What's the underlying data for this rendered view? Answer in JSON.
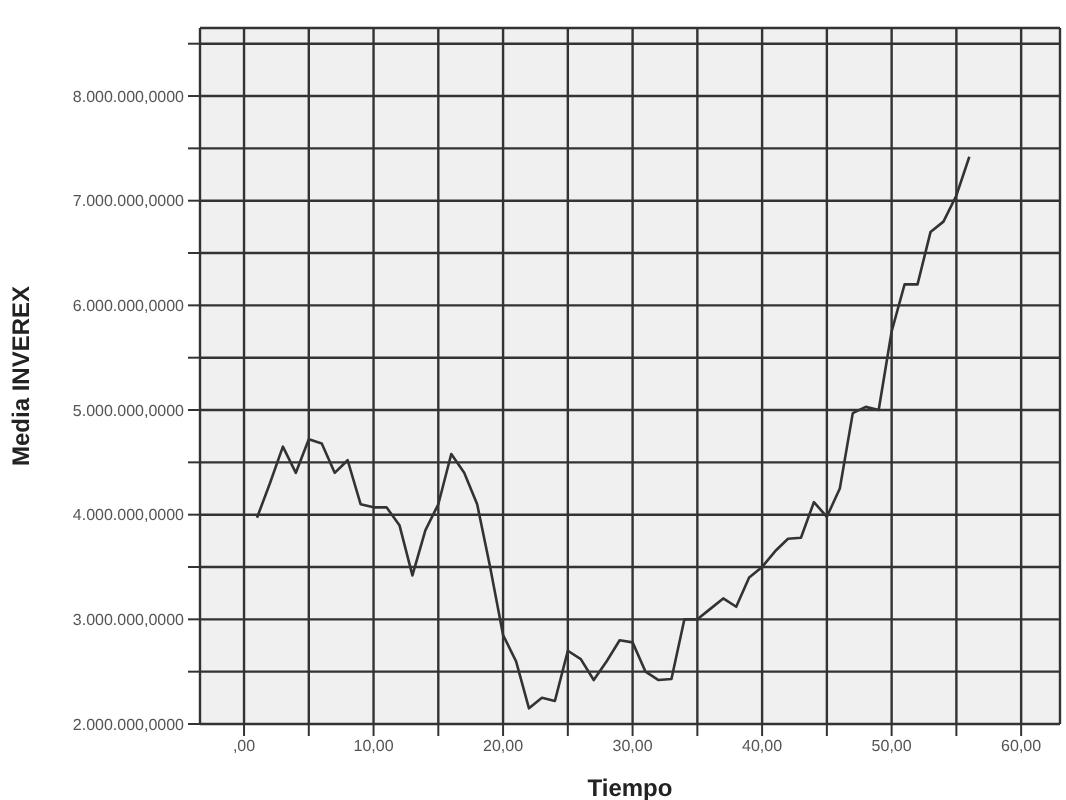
{
  "chart_data": {
    "type": "line",
    "xlabel": "Tiempo",
    "ylabel": "Media INVEREX",
    "x": [
      1,
      2,
      3,
      4,
      5,
      6,
      7,
      8,
      9,
      10,
      11,
      12,
      13,
      14,
      15,
      16,
      17,
      18,
      19,
      20,
      21,
      22,
      23,
      24,
      25,
      26,
      27,
      28,
      29,
      30,
      31,
      32,
      33,
      34,
      35,
      36,
      37,
      38,
      39,
      40,
      41,
      42,
      43,
      44,
      45,
      46,
      47,
      48,
      49,
      50,
      51,
      52,
      53,
      54,
      55,
      56
    ],
    "series": [
      {
        "color": "#333333",
        "values": [
          3970000,
          4300000,
          4650000,
          4400000,
          4720000,
          4680000,
          4400000,
          4520000,
          4100000,
          4070000,
          4070000,
          3900000,
          3420000,
          3850000,
          4100000,
          4580000,
          4400000,
          4100000,
          3500000,
          2850000,
          2600000,
          2150000,
          2250000,
          2220000,
          2700000,
          2620000,
          2420000,
          2600000,
          2800000,
          2780000,
          2500000,
          2420000,
          2430000,
          3000000,
          3000000,
          3100000,
          3200000,
          3120000,
          3400000,
          3500000,
          3650000,
          3770000,
          3780000,
          4120000,
          3980000,
          4250000,
          4970000,
          5030000,
          5000000,
          5750000,
          6200000,
          6200000,
          6700000,
          6800000,
          7050000,
          7420000
        ]
      }
    ],
    "xlim": [
      -3.4,
      63
    ],
    "xticks": [
      {
        "value": 0,
        "label": ",00"
      },
      {
        "value": 5,
        "label": null
      },
      {
        "value": 10,
        "label": "10,00"
      },
      {
        "value": 15,
        "label": null
      },
      {
        "value": 20,
        "label": "20,00"
      },
      {
        "value": 25,
        "label": null
      },
      {
        "value": 30,
        "label": "30,00"
      },
      {
        "value": 35,
        "label": null
      },
      {
        "value": 40,
        "label": "40,00"
      },
      {
        "value": 45,
        "label": null
      },
      {
        "value": 50,
        "label": "50,00"
      },
      {
        "value": 55,
        "label": null
      },
      {
        "value": 60,
        "label": "60,00"
      }
    ],
    "ylim": [
      2000000,
      8650000
    ],
    "yticks": [
      {
        "value": 2000000,
        "label": "2.000.000,0000"
      },
      {
        "value": 2500000,
        "label": null
      },
      {
        "value": 3000000,
        "label": "3.000.000,0000"
      },
      {
        "value": 3500000,
        "label": null
      },
      {
        "value": 4000000,
        "label": "4.000.000,0000"
      },
      {
        "value": 4500000,
        "label": null
      },
      {
        "value": 5000000,
        "label": "5.000.000,0000"
      },
      {
        "value": 5500000,
        "label": null
      },
      {
        "value": 6000000,
        "label": "6.000.000,0000"
      },
      {
        "value": 6500000,
        "label": null
      },
      {
        "value": 7000000,
        "label": "7.000.000,0000"
      },
      {
        "value": 7500000,
        "label": null
      },
      {
        "value": 8000000,
        "label": "8.000.000,0000"
      },
      {
        "value": 8500000,
        "label": null
      }
    ],
    "grid": true,
    "marker": "none",
    "line_style": "solid"
  }
}
